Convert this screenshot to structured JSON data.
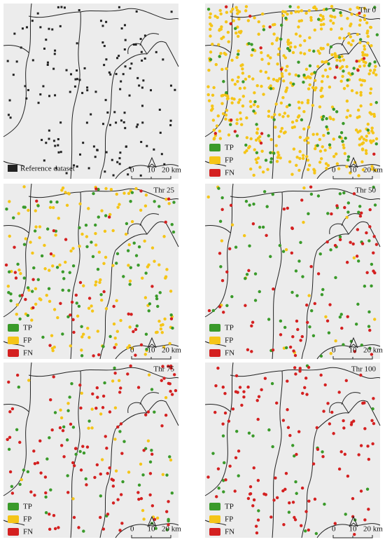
{
  "reference_panel": {
    "legend": "Reference dataset"
  },
  "threshold_panels": [
    {
      "title": "Thr 0"
    },
    {
      "title": "Thr 25"
    },
    {
      "title": "Thr 50"
    },
    {
      "title": "Thr 75"
    },
    {
      "title": "Thr 100"
    }
  ],
  "legend": [
    "TP",
    "FP",
    "FN"
  ],
  "scale_labels": [
    "0",
    "10",
    "20 km"
  ]
}
